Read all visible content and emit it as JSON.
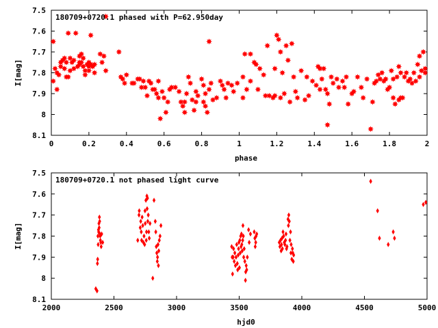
{
  "colors": {
    "points": "#ff0000",
    "axes": "#000000",
    "background": "#ffffff"
  },
  "chart_data": [
    {
      "type": "scatter",
      "title": "180709+0720.1 phased with P=62.950day",
      "xlabel": "phase",
      "ylabel": "I[mag]",
      "xlim": [
        0,
        2
      ],
      "ylim": [
        7.5,
        8.1
      ],
      "y_inverted": true,
      "grid": false,
      "marker": "star",
      "xticks": [
        "0",
        "0.2",
        "0.4",
        "0.6",
        "0.8",
        "1",
        "1.2",
        "1.4",
        "1.6",
        "1.8",
        "2"
      ],
      "yticks": [
        "7.5",
        "7.6",
        "7.7",
        "7.8",
        "7.9",
        "8",
        "8.1"
      ],
      "points": [
        [
          0.01,
          7.65
        ],
        [
          0.01,
          7.84
        ],
        [
          0.02,
          7.78
        ],
        [
          0.03,
          7.8
        ],
        [
          0.03,
          7.88
        ],
        [
          0.04,
          7.81
        ],
        [
          0.05,
          7.75
        ],
        [
          0.05,
          7.77
        ],
        [
          0.06,
          7.74
        ],
        [
          0.07,
          7.78
        ],
        [
          0.07,
          7.73
        ],
        [
          0.08,
          7.82
        ],
        [
          0.08,
          7.75
        ],
        [
          0.09,
          7.82
        ],
        [
          0.09,
          7.61
        ],
        [
          0.1,
          7.79
        ],
        [
          0.1,
          7.73
        ],
        [
          0.11,
          7.75
        ],
        [
          0.12,
          7.74
        ],
        [
          0.12,
          7.78
        ],
        [
          0.13,
          7.61
        ],
        [
          0.14,
          7.77
        ],
        [
          0.15,
          7.72
        ],
        [
          0.15,
          7.75
        ],
        [
          0.15,
          7.76
        ],
        [
          0.16,
          7.71
        ],
        [
          0.16,
          7.75
        ],
        [
          0.17,
          7.73
        ],
        [
          0.17,
          7.77
        ],
        [
          0.18,
          7.81
        ],
        [
          0.18,
          7.79
        ],
        [
          0.19,
          7.76
        ],
        [
          0.2,
          7.75
        ],
        [
          0.2,
          7.79
        ],
        [
          0.2,
          7.77
        ],
        [
          0.21,
          7.62
        ],
        [
          0.21,
          7.76
        ],
        [
          0.22,
          7.77
        ],
        [
          0.23,
          7.76
        ],
        [
          0.23,
          7.8
        ],
        [
          0.26,
          7.71
        ],
        [
          0.27,
          7.75
        ],
        [
          0.28,
          7.72
        ],
        [
          0.29,
          7.79
        ],
        [
          0.29,
          7.53
        ],
        [
          0.36,
          7.7
        ],
        [
          0.37,
          7.82
        ],
        [
          0.38,
          7.83
        ],
        [
          0.39,
          7.85
        ],
        [
          0.4,
          7.81
        ],
        [
          0.43,
          7.85
        ],
        [
          0.44,
          7.85
        ],
        [
          0.46,
          7.83
        ],
        [
          0.47,
          7.83
        ],
        [
          0.48,
          7.87
        ],
        [
          0.49,
          7.84
        ],
        [
          0.5,
          7.87
        ],
        [
          0.51,
          7.91
        ],
        [
          0.52,
          7.84
        ],
        [
          0.53,
          7.85
        ],
        [
          0.54,
          7.88
        ],
        [
          0.55,
          7.88
        ],
        [
          0.56,
          7.9
        ],
        [
          0.57,
          7.84
        ],
        [
          0.57,
          7.92
        ],
        [
          0.58,
          8.02
        ],
        [
          0.59,
          7.89
        ],
        [
          0.6,
          7.92
        ],
        [
          0.61,
          7.99
        ],
        [
          0.62,
          7.94
        ],
        [
          0.63,
          7.88
        ],
        [
          0.64,
          7.87
        ],
        [
          0.66,
          7.87
        ],
        [
          0.68,
          7.89
        ],
        [
          0.69,
          7.94
        ],
        [
          0.7,
          7.96
        ],
        [
          0.71,
          7.94
        ],
        [
          0.71,
          7.99
        ],
        [
          0.72,
          7.9
        ],
        [
          0.73,
          7.82
        ],
        [
          0.74,
          7.85
        ],
        [
          0.75,
          7.93
        ],
        [
          0.76,
          7.98
        ],
        [
          0.77,
          7.89
        ],
        [
          0.77,
          7.94
        ],
        [
          0.78,
          7.91
        ],
        [
          0.8,
          7.83
        ],
        [
          0.81,
          7.86
        ],
        [
          0.81,
          7.94
        ],
        [
          0.82,
          7.9
        ],
        [
          0.82,
          7.96
        ],
        [
          0.83,
          7.99
        ],
        [
          0.84,
          7.88
        ],
        [
          0.84,
          7.65
        ],
        [
          0.85,
          7.85
        ],
        [
          0.86,
          7.93
        ],
        [
          0.88,
          7.92
        ],
        [
          0.9,
          7.84
        ],
        [
          0.91,
          7.86
        ],
        [
          0.92,
          7.88
        ],
        [
          0.93,
          7.92
        ],
        [
          0.94,
          7.85
        ],
        [
          0.96,
          7.86
        ],
        [
          0.97,
          7.89
        ],
        [
          0.99,
          7.85
        ],
        [
          1.02,
          7.82
        ],
        [
          1.02,
          7.92
        ],
        [
          1.03,
          7.71
        ],
        [
          1.04,
          7.88
        ],
        [
          1.06,
          7.84
        ],
        [
          1.06,
          7.71
        ],
        [
          1.08,
          7.75
        ],
        [
          1.09,
          7.76
        ],
        [
          1.1,
          7.88
        ],
        [
          1.11,
          7.78
        ],
        [
          1.13,
          7.81
        ],
        [
          1.14,
          7.91
        ],
        [
          1.15,
          7.67
        ],
        [
          1.16,
          7.91
        ],
        [
          1.18,
          7.92
        ],
        [
          1.19,
          7.78
        ],
        [
          1.19,
          7.91
        ],
        [
          1.2,
          7.62
        ],
        [
          1.21,
          7.64
        ],
        [
          1.22,
          7.7
        ],
        [
          1.22,
          7.92
        ],
        [
          1.23,
          7.8
        ],
        [
          1.24,
          7.9
        ],
        [
          1.25,
          7.67
        ],
        [
          1.26,
          7.74
        ],
        [
          1.27,
          7.94
        ],
        [
          1.28,
          7.66
        ],
        [
          1.29,
          7.82
        ],
        [
          1.3,
          7.89
        ],
        [
          1.31,
          7.92
        ],
        [
          1.33,
          7.79
        ],
        [
          1.35,
          7.93
        ],
        [
          1.36,
          7.82
        ],
        [
          1.37,
          7.91
        ],
        [
          1.39,
          7.84
        ],
        [
          1.41,
          7.86
        ],
        [
          1.42,
          7.77
        ],
        [
          1.43,
          7.78
        ],
        [
          1.43,
          7.88
        ],
        [
          1.44,
          7.83
        ],
        [
          1.45,
          7.78
        ],
        [
          1.46,
          7.88
        ],
        [
          1.47,
          7.9
        ],
        [
          1.47,
          8.05
        ],
        [
          1.48,
          7.95
        ],
        [
          1.49,
          7.82
        ],
        [
          1.5,
          7.85
        ],
        [
          1.52,
          7.83
        ],
        [
          1.53,
          7.87
        ],
        [
          1.55,
          7.84
        ],
        [
          1.56,
          7.87
        ],
        [
          1.57,
          7.82
        ],
        [
          1.58,
          7.95
        ],
        [
          1.6,
          7.9
        ],
        [
          1.61,
          7.89
        ],
        [
          1.63,
          7.82
        ],
        [
          1.65,
          7.87
        ],
        [
          1.66,
          7.92
        ],
        [
          1.68,
          7.83
        ],
        [
          1.7,
          8.07
        ],
        [
          1.71,
          7.94
        ],
        [
          1.72,
          7.85
        ],
        [
          1.73,
          7.84
        ],
        [
          1.74,
          7.81
        ],
        [
          1.75,
          7.83
        ],
        [
          1.76,
          7.8
        ],
        [
          1.77,
          7.84
        ],
        [
          1.78,
          7.83
        ],
        [
          1.79,
          7.88
        ],
        [
          1.8,
          7.87
        ],
        [
          1.81,
          7.79
        ],
        [
          1.82,
          7.83
        ],
        [
          1.82,
          7.92
        ],
        [
          1.83,
          7.95
        ],
        [
          1.84,
          7.82
        ],
        [
          1.85,
          7.77
        ],
        [
          1.85,
          7.93
        ],
        [
          1.86,
          7.8
        ],
        [
          1.86,
          7.92
        ],
        [
          1.87,
          7.92
        ],
        [
          1.88,
          7.82
        ],
        [
          1.89,
          7.8
        ],
        [
          1.9,
          7.84
        ],
        [
          1.91,
          7.83
        ],
        [
          1.92,
          7.85
        ],
        [
          1.93,
          7.8
        ],
        [
          1.94,
          7.84
        ],
        [
          1.95,
          7.76
        ],
        [
          1.96,
          7.82
        ],
        [
          1.96,
          7.72
        ],
        [
          1.97,
          7.79
        ],
        [
          1.98,
          7.7
        ],
        [
          1.99,
          7.78
        ],
        [
          1.99,
          7.8
        ]
      ]
    },
    {
      "type": "scatter",
      "title": "180709+0720.1 not phased light curve",
      "xlabel": "hjd0",
      "ylabel": "I[mag]",
      "xlim": [
        2000,
        5000
      ],
      "ylim": [
        7.5,
        8.1
      ],
      "y_inverted": true,
      "grid": false,
      "marker": "diamond",
      "xticks": [
        "2000",
        "2500",
        "3000",
        "3500",
        "4000",
        "4500",
        "5000"
      ],
      "yticks": [
        "7.5",
        "7.6",
        "7.7",
        "7.8",
        "7.9",
        "8",
        "8.1"
      ],
      "points": [
        [
          2355,
          8.05
        ],
        [
          2365,
          8.06
        ],
        [
          2368,
          7.93
        ],
        [
          2370,
          7.91
        ],
        [
          2372,
          7.8
        ],
        [
          2374,
          7.84
        ],
        [
          2376,
          7.77
        ],
        [
          2378,
          7.78
        ],
        [
          2380,
          7.74
        ],
        [
          2382,
          7.76
        ],
        [
          2384,
          7.71
        ],
        [
          2386,
          7.73
        ],
        [
          2388,
          7.79
        ],
        [
          2390,
          7.8
        ],
        [
          2392,
          7.82
        ],
        [
          2395,
          7.83
        ],
        [
          2398,
          7.85
        ],
        [
          2402,
          7.79
        ],
        [
          2410,
          7.83
        ],
        [
          2690,
          7.82
        ],
        [
          2700,
          7.7
        ],
        [
          2702,
          7.68
        ],
        [
          2710,
          7.76
        ],
        [
          2714,
          7.73
        ],
        [
          2718,
          7.78
        ],
        [
          2721,
          7.82
        ],
        [
          2725,
          7.71
        ],
        [
          2730,
          7.75
        ],
        [
          2735,
          7.83
        ],
        [
          2740,
          7.8
        ],
        [
          2745,
          7.84
        ],
        [
          2748,
          7.68
        ],
        [
          2750,
          7.74
        ],
        [
          2755,
          7.63
        ],
        [
          2758,
          7.82
        ],
        [
          2760,
          7.78
        ],
        [
          2763,
          7.61
        ],
        [
          2765,
          7.67
        ],
        [
          2768,
          7.62
        ],
        [
          2770,
          7.73
        ],
        [
          2774,
          7.7
        ],
        [
          2778,
          7.78
        ],
        [
          2782,
          7.81
        ],
        [
          2788,
          7.74
        ],
        [
          2810,
          8.0
        ],
        [
          2820,
          7.63
        ],
        [
          2830,
          7.73
        ],
        [
          2834,
          7.78
        ],
        [
          2838,
          7.85
        ],
        [
          2842,
          7.88
        ],
        [
          2846,
          7.92
        ],
        [
          2848,
          7.9
        ],
        [
          2852,
          7.84
        ],
        [
          2855,
          7.94
        ],
        [
          2858,
          7.87
        ],
        [
          2862,
          7.82
        ],
        [
          2868,
          7.8
        ],
        [
          2875,
          7.75
        ],
        [
          3440,
          7.85
        ],
        [
          3444,
          7.9
        ],
        [
          3447,
          7.98
        ],
        [
          3452,
          7.9
        ],
        [
          3455,
          7.86
        ],
        [
          3460,
          7.92
        ],
        [
          3465,
          7.88
        ],
        [
          3470,
          7.94
        ],
        [
          3475,
          7.9
        ],
        [
          3480,
          7.84
        ],
        [
          3485,
          7.93
        ],
        [
          3488,
          7.96
        ],
        [
          3492,
          7.89
        ],
        [
          3495,
          7.86
        ],
        [
          3498,
          7.83
        ],
        [
          3502,
          7.95
        ],
        [
          3505,
          7.82
        ],
        [
          3508,
          7.88
        ],
        [
          3512,
          7.8
        ],
        [
          3515,
          7.85
        ],
        [
          3518,
          7.79
        ],
        [
          3521,
          7.84
        ],
        [
          3524,
          7.87
        ],
        [
          3528,
          7.82
        ],
        [
          3530,
          7.75
        ],
        [
          3533,
          7.8
        ],
        [
          3536,
          7.9
        ],
        [
          3540,
          7.86
        ],
        [
          3545,
          7.92
        ],
        [
          3550,
          8.01
        ],
        [
          3552,
          7.97
        ],
        [
          3556,
          7.94
        ],
        [
          3560,
          7.96
        ],
        [
          3565,
          7.9
        ],
        [
          3575,
          7.77
        ],
        [
          3580,
          7.83
        ],
        [
          3590,
          7.79
        ],
        [
          3620,
          7.78
        ],
        [
          3625,
          7.81
        ],
        [
          3628,
          7.85
        ],
        [
          3632,
          7.83
        ],
        [
          3635,
          7.8
        ],
        [
          3640,
          7.79
        ],
        [
          3820,
          7.83
        ],
        [
          3825,
          7.85
        ],
        [
          3830,
          7.82
        ],
        [
          3835,
          7.87
        ],
        [
          3838,
          7.84
        ],
        [
          3842,
          7.81
        ],
        [
          3845,
          7.86
        ],
        [
          3850,
          7.78
        ],
        [
          3855,
          7.8
        ],
        [
          3860,
          7.83
        ],
        [
          3865,
          7.84
        ],
        [
          3870,
          7.82
        ],
        [
          3874,
          7.79
        ],
        [
          3878,
          7.86
        ],
        [
          3882,
          7.85
        ],
        [
          3890,
          7.72
        ],
        [
          3893,
          7.75
        ],
        [
          3896,
          7.7
        ],
        [
          3900,
          7.73
        ],
        [
          3905,
          7.82
        ],
        [
          3910,
          7.78
        ],
        [
          3913,
          7.88
        ],
        [
          3915,
          7.84
        ],
        [
          3920,
          7.91
        ],
        [
          3925,
          7.86
        ],
        [
          3928,
          7.88
        ],
        [
          3932,
          7.92
        ],
        [
          3935,
          7.89
        ],
        [
          4550,
          7.54
        ],
        [
          4605,
          7.68
        ],
        [
          4620,
          7.81
        ],
        [
          4690,
          7.84
        ],
        [
          4730,
          7.78
        ],
        [
          4740,
          7.81
        ],
        [
          4970,
          7.65
        ],
        [
          4990,
          7.64
        ]
      ]
    }
  ]
}
